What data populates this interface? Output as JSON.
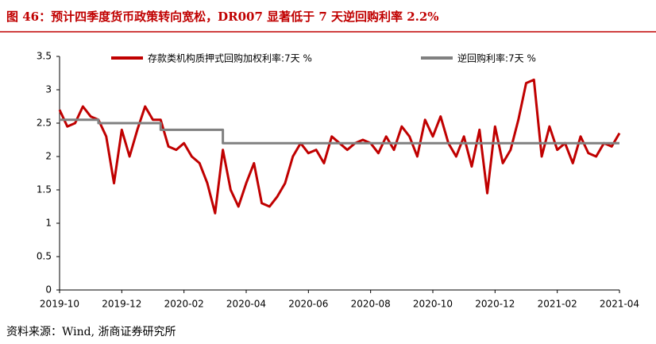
{
  "chart_data": {
    "type": "line",
    "title": "图 46：预计四季度货币政策转向宽松，DR007 显著低于 7 天逆回购利率 2.2%",
    "source": "资料来源：Wind, 浙商证券研究所",
    "categories": [
      "2019-10",
      null,
      null,
      null,
      null,
      null,
      null,
      null,
      "2019-12",
      null,
      null,
      null,
      null,
      null,
      null,
      null,
      "2020-02",
      null,
      null,
      null,
      null,
      null,
      null,
      null,
      "2020-04",
      null,
      null,
      null,
      null,
      null,
      null,
      null,
      "2020-06",
      null,
      null,
      null,
      null,
      null,
      null,
      null,
      "2020-08",
      null,
      null,
      null,
      null,
      null,
      null,
      null,
      "2020-10",
      null,
      null,
      null,
      null,
      null,
      null,
      null,
      "2020-12",
      null,
      null,
      null,
      null,
      null,
      null,
      null,
      "2021-02",
      null,
      null,
      null,
      null,
      null,
      null,
      null,
      "2021-04"
    ],
    "series": [
      {
        "name": "存款类机构质押式回购加权利率:7天 %",
        "color": "#c00000",
        "line_style": "straight",
        "values": [
          2.7,
          2.45,
          2.5,
          2.75,
          2.6,
          2.55,
          2.3,
          1.6,
          2.4,
          2.0,
          2.4,
          2.75,
          2.55,
          2.55,
          2.15,
          2.1,
          2.2,
          2.0,
          1.9,
          1.6,
          1.15,
          2.1,
          1.5,
          1.25,
          1.6,
          1.9,
          1.3,
          1.25,
          1.4,
          1.6,
          2.0,
          2.2,
          2.05,
          2.1,
          1.9,
          2.3,
          2.2,
          2.1,
          2.2,
          2.25,
          2.2,
          2.05,
          2.3,
          2.1,
          2.45,
          2.3,
          2.0,
          2.55,
          2.3,
          2.6,
          2.2,
          2.0,
          2.3,
          1.85,
          2.4,
          1.45,
          2.45,
          1.9,
          2.1,
          2.55,
          3.1,
          3.15,
          2.0,
          2.45,
          2.1,
          2.2,
          1.9,
          2.3,
          2.05,
          2.0,
          2.2,
          2.15,
          2.35
        ]
      },
      {
        "name": "逆回购利率:7天 %",
        "color": "#808080",
        "line_style": "step",
        "values": [
          2.55,
          2.55,
          2.55,
          2.55,
          2.55,
          2.5,
          2.5,
          2.5,
          2.5,
          2.5,
          2.5,
          2.5,
          2.5,
          2.4,
          2.4,
          2.4,
          2.4,
          2.4,
          2.4,
          2.4,
          2.4,
          2.2,
          2.2,
          2.2,
          2.2,
          2.2,
          2.2,
          2.2,
          2.2,
          2.2,
          2.2,
          2.2,
          2.2,
          2.2,
          2.2,
          2.2,
          2.2,
          2.2,
          2.2,
          2.2,
          2.2,
          2.2,
          2.2,
          2.2,
          2.2,
          2.2,
          2.2,
          2.2,
          2.2,
          2.2,
          2.2,
          2.2,
          2.2,
          2.2,
          2.2,
          2.2,
          2.2,
          2.2,
          2.2,
          2.2,
          2.2,
          2.2,
          2.2,
          2.2,
          2.2,
          2.2,
          2.2,
          2.2,
          2.2,
          2.2,
          2.2,
          2.2,
          2.2
        ]
      }
    ],
    "ylim": [
      0,
      3.5
    ],
    "yticks": [
      0,
      0.5,
      1,
      1.5,
      2,
      2.5,
      3,
      3.5
    ],
    "grid": false,
    "legend": "top"
  }
}
